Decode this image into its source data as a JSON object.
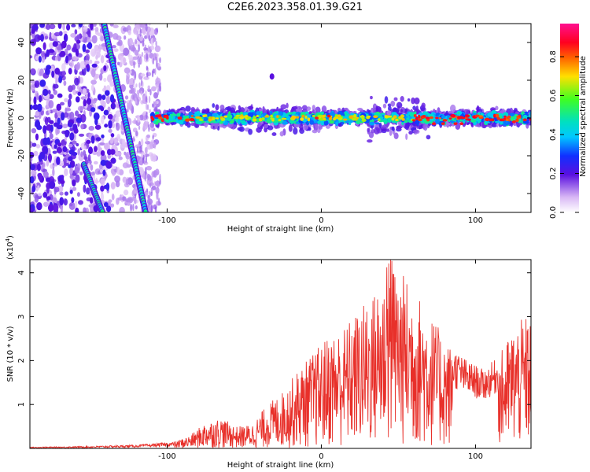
{
  "title": "C2E6.2023.358.01.39.G21",
  "chart_data": [
    {
      "type": "heatmap",
      "title": "C2E6.2023.358.01.39.G21",
      "xlabel": "Height of straight line (km)",
      "ylabel": "Frequency (Hz)",
      "xlim": [
        -189,
        136
      ],
      "ylim": [
        -50,
        50
      ],
      "xticks": [
        -100,
        0,
        100
      ],
      "yticks": [
        -40,
        -20,
        0,
        20,
        40
      ],
      "grid": false,
      "colorbar": {
        "label": "Normalized spectral amplitude",
        "range": [
          0.0,
          0.97
        ],
        "ticks": [
          "0.0",
          "0.2",
          "0.4",
          "0.6",
          "0.8"
        ],
        "colormap": "rainbow (white, violet, blue, cyan, green, yellow, red, magenta)"
      },
      "features": {
        "main_band": {
          "x_range": [
            -110,
            136
          ],
          "center_hz": 0,
          "halfwidth_hz": 5
        },
        "stripe_1": {
          "x_at_top_hz_50": -141,
          "x_at_bottom_hz_minus_50": -114
        },
        "stripe_2": {
          "x_at_top_hz_minus_25": -154,
          "x_at_bottom_hz_minus_50": -142
        },
        "isolated_blob": {
          "x": -32,
          "y_hz": 22
        },
        "left_noise_region": {
          "x_range": [
            -189,
            -105
          ]
        }
      }
    },
    {
      "type": "line",
      "xlabel": "Height of straight line (km)",
      "ylabel": "SNR (10 * v/v)",
      "yscale_label": "(x10",
      "yscale_exponent": "4",
      "yscale_suffix": ")",
      "xlim": [
        -189,
        136
      ],
      "ylim": [
        0,
        4.3
      ],
      "xticks": [
        -100,
        0,
        100
      ],
      "yticks": [
        1,
        2,
        3,
        4
      ],
      "grid": false,
      "color": "#e8302a",
      "envelope_x": [
        -189,
        -150,
        -120,
        -95,
        -85,
        -75,
        -65,
        -55,
        -45,
        -35,
        -25,
        -15,
        -5,
        5,
        15,
        25,
        35,
        45,
        55,
        65,
        75,
        85,
        95,
        105,
        115,
        125,
        136
      ],
      "envelope_y": [
        0.03,
        0.05,
        0.08,
        0.15,
        0.3,
        0.6,
        0.7,
        0.5,
        0.55,
        1.0,
        1.3,
        1.8,
        2.2,
        2.6,
        2.8,
        3.2,
        3.6,
        4.3,
        3.9,
        3.4,
        2.8,
        2.3,
        2.0,
        1.8,
        2.1,
        2.8,
        3.1
      ]
    }
  ]
}
